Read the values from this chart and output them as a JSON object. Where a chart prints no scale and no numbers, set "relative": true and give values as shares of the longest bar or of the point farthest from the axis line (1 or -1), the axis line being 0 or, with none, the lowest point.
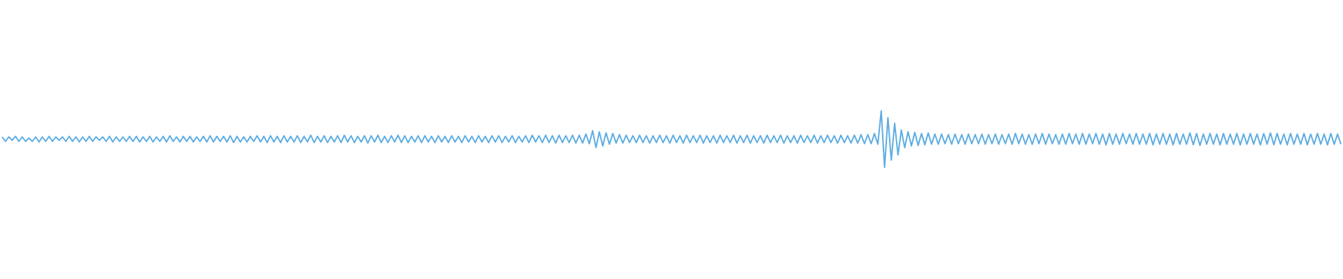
{
  "chart_data": {
    "type": "line",
    "relative": true,
    "color": "#5dade2",
    "categories": [
      null,
      null,
      null,
      null,
      null,
      null,
      null,
      null,
      null,
      null,
      null,
      null,
      null,
      null,
      null,
      null,
      null,
      null,
      null,
      null,
      null,
      null,
      null,
      null,
      null,
      null,
      null,
      null,
      null,
      null,
      null,
      null,
      null,
      null,
      null,
      null,
      null,
      null,
      null,
      null,
      null,
      null,
      null,
      null,
      null,
      null,
      null,
      null,
      null,
      null,
      null,
      null,
      null,
      null,
      null,
      null,
      null,
      null,
      null,
      null,
      null,
      null,
      null,
      null,
      null,
      null,
      null,
      null,
      null,
      null,
      null,
      null,
      null,
      null,
      null,
      null,
      null,
      null,
      null,
      null,
      null,
      null,
      null,
      null,
      null,
      null,
      null,
      null,
      null,
      null,
      null,
      null,
      null,
      null,
      null,
      null,
      null,
      null,
      null,
      null,
      null,
      null,
      null,
      null,
      null,
      null,
      null,
      null,
      null,
      null,
      null,
      null,
      null,
      null,
      null,
      null,
      null,
      null,
      null,
      null,
      null,
      null,
      null,
      null,
      null,
      null,
      null,
      null,
      null,
      null,
      null,
      null,
      null,
      null,
      null,
      null,
      null,
      null,
      null,
      null,
      null,
      null,
      null,
      null,
      null,
      null,
      null,
      null,
      null,
      null,
      null,
      null,
      null,
      null,
      null,
      null,
      null,
      null,
      null,
      null,
      null,
      null,
      null,
      null,
      null,
      null,
      null,
      null,
      null,
      null,
      null,
      null,
      null,
      null,
      null,
      null,
      null,
      null,
      null,
      null,
      null,
      null,
      null,
      null,
      null,
      null,
      null,
      null,
      null,
      null,
      null,
      null,
      null,
      null,
      null,
      null,
      null,
      null,
      null,
      null,
      null,
      null,
      null,
      null,
      null,
      null,
      null,
      null,
      null,
      null,
      null,
      null,
      null,
      null,
      null,
      null,
      null,
      null,
      null,
      null,
      null,
      null,
      null,
      null,
      null,
      null,
      null,
      null,
      null,
      null,
      null,
      null,
      null,
      null,
      null,
      null,
      null,
      null,
      null,
      null,
      null,
      null,
      null,
      null,
      null,
      null,
      null,
      null,
      null,
      null,
      null,
      null,
      null,
      null,
      null,
      null,
      null,
      null,
      null,
      null,
      null,
      null,
      null,
      null,
      null,
      null,
      null,
      null,
      null,
      null,
      null,
      null,
      null,
      null,
      null,
      null,
      null,
      null,
      null,
      null,
      null,
      null,
      null,
      null,
      null,
      null,
      null,
      null,
      null,
      null,
      null,
      null,
      null,
      null,
      null,
      null,
      null,
      null,
      null,
      null,
      null,
      null,
      null,
      null,
      null,
      null,
      null,
      null,
      null,
      null,
      null,
      null,
      null,
      null,
      null,
      null,
      null,
      null,
      null,
      null,
      null,
      null,
      null,
      null,
      null,
      null,
      null,
      null,
      null,
      null,
      null,
      null,
      null,
      null,
      null,
      null,
      null,
      null,
      null,
      null,
      null,
      null,
      null,
      null,
      null,
      null,
      null,
      null,
      null,
      null,
      null,
      null,
      null,
      null,
      null,
      null,
      null,
      null,
      null,
      null,
      null,
      null,
      null,
      null,
      null,
      null,
      null,
      null,
      null,
      null,
      null,
      null,
      null,
      null,
      null,
      null,
      null,
      null,
      null,
      null,
      null,
      null,
      null,
      null,
      null,
      null,
      null,
      null,
      null,
      null,
      null,
      null,
      null,
      null,
      null,
      null,
      null,
      null,
      null,
      null
    ],
    "values": [
      0.54,
      0.46,
      0.54,
      0.48,
      0.55,
      0.46,
      0.54,
      0.46,
      0.52,
      0.46,
      0.54,
      0.45,
      0.54,
      0.46,
      0.55,
      0.46,
      0.54,
      0.48,
      0.54,
      0.46,
      0.55,
      0.46,
      0.54,
      0.45,
      0.54,
      0.46,
      0.55,
      0.46,
      0.54,
      0.48,
      0.54,
      0.46,
      0.55,
      0.45,
      0.54,
      0.46,
      0.54,
      0.46,
      0.55,
      0.46,
      0.55,
      0.45,
      0.54,
      0.46,
      0.55,
      0.45,
      0.54,
      0.46,
      0.55,
      0.45,
      0.56,
      0.46,
      0.54,
      0.45,
      0.55,
      0.46,
      0.55,
      0.45,
      0.54,
      0.46,
      0.55,
      0.45,
      0.56,
      0.45,
      0.55,
      0.46,
      0.55,
      0.45,
      0.56,
      0.44,
      0.55,
      0.45,
      0.54,
      0.45,
      0.55,
      0.46,
      0.56,
      0.45,
      0.55,
      0.44,
      0.56,
      0.45,
      0.55,
      0.44,
      0.56,
      0.45,
      0.55,
      0.45,
      0.56,
      0.44,
      0.55,
      0.45,
      0.57,
      0.44,
      0.55,
      0.45,
      0.56,
      0.44,
      0.55,
      0.45,
      0.56,
      0.44,
      0.57,
      0.45,
      0.56,
      0.44,
      0.55,
      0.45,
      0.56,
      0.43,
      0.56,
      0.45,
      0.57,
      0.44,
      0.55,
      0.44,
      0.56,
      0.45,
      0.57,
      0.44,
      0.56,
      0.44,
      0.55,
      0.45,
      0.56,
      0.44,
      0.56,
      0.45,
      0.55,
      0.44,
      0.56,
      0.45,
      0.55,
      0.44,
      0.56,
      0.45,
      0.55,
      0.44,
      0.56,
      0.45,
      0.55,
      0.44,
      0.56,
      0.45,
      0.55,
      0.44,
      0.56,
      0.45,
      0.56,
      0.44,
      0.55,
      0.45,
      0.56,
      0.44,
      0.55,
      0.45,
      0.56,
      0.44,
      0.57,
      0.45,
      0.56,
      0.44,
      0.57,
      0.44,
      0.56,
      0.43,
      0.57,
      0.44,
      0.56,
      0.44,
      0.57,
      0.43,
      0.57,
      0.43,
      0.59,
      0.42,
      0.65,
      0.35,
      0.63,
      0.38,
      0.61,
      0.41,
      0.6,
      0.43,
      0.58,
      0.43,
      0.57,
      0.44,
      0.56,
      0.44,
      0.57,
      0.44,
      0.56,
      0.43,
      0.56,
      0.44,
      0.57,
      0.44,
      0.56,
      0.43,
      0.57,
      0.44,
      0.56,
      0.43,
      0.57,
      0.44,
      0.56,
      0.44,
      0.57,
      0.43,
      0.56,
      0.44,
      0.56,
      0.43,
      0.57,
      0.44,
      0.56,
      0.44,
      0.57,
      0.43,
      0.56,
      0.44,
      0.57,
      0.43,
      0.56,
      0.44,
      0.56,
      0.43,
      0.57,
      0.44,
      0.56,
      0.44,
      0.57,
      0.43,
      0.56,
      0.44,
      0.56,
      0.43,
      0.57,
      0.44,
      0.56,
      0.44,
      0.57,
      0.43,
      0.56,
      0.44,
      0.57,
      0.44,
      0.56,
      0.43,
      0.57,
      0.44,
      0.56,
      0.43,
      0.57,
      0.43,
      0.58,
      0.42,
      0.58,
      0.42,
      0.6,
      0.41,
      1.0,
      0.0,
      0.88,
      0.13,
      0.78,
      0.22,
      0.66,
      0.35,
      0.63,
      0.38,
      0.62,
      0.39,
      0.6,
      0.4,
      0.61,
      0.41,
      0.59,
      0.41,
      0.59,
      0.42,
      0.58,
      0.41,
      0.59,
      0.42,
      0.58,
      0.41,
      0.59,
      0.42,
      0.58,
      0.42,
      0.59,
      0.41,
      0.58,
      0.42,
      0.59,
      0.41,
      0.58,
      0.42,
      0.59,
      0.41,
      0.6,
      0.42,
      0.59,
      0.41,
      0.58,
      0.41,
      0.59,
      0.42,
      0.6,
      0.41,
      0.59,
      0.42,
      0.58,
      0.41,
      0.59,
      0.41,
      0.6,
      0.42,
      0.59,
      0.41,
      0.6,
      0.41,
      0.59,
      0.42,
      0.6,
      0.41,
      0.59,
      0.4,
      0.6,
      0.41,
      0.59,
      0.41,
      0.6,
      0.42,
      0.59,
      0.41,
      0.6,
      0.41,
      0.59,
      0.41,
      0.6,
      0.4,
      0.59,
      0.41,
      0.6,
      0.41,
      0.59,
      0.4,
      0.6,
      0.41,
      0.59,
      0.41,
      0.61,
      0.4,
      0.6,
      0.39,
      0.59,
      0.41,
      0.6,
      0.41,
      0.59,
      0.4,
      0.6,
      0.41,
      0.59,
      0.41,
      0.6,
      0.4,
      0.59,
      0.41,
      0.6,
      0.41,
      0.59,
      0.4,
      0.6,
      0.41,
      0.61,
      0.4,
      0.6,
      0.41,
      0.59,
      0.4,
      0.6,
      0.41,
      0.59,
      0.41,
      0.6,
      0.4,
      0.59,
      0.41,
      0.6,
      0.41,
      0.59,
      0.4,
      0.6,
      0.41,
      0.59,
      0.41
    ]
  }
}
